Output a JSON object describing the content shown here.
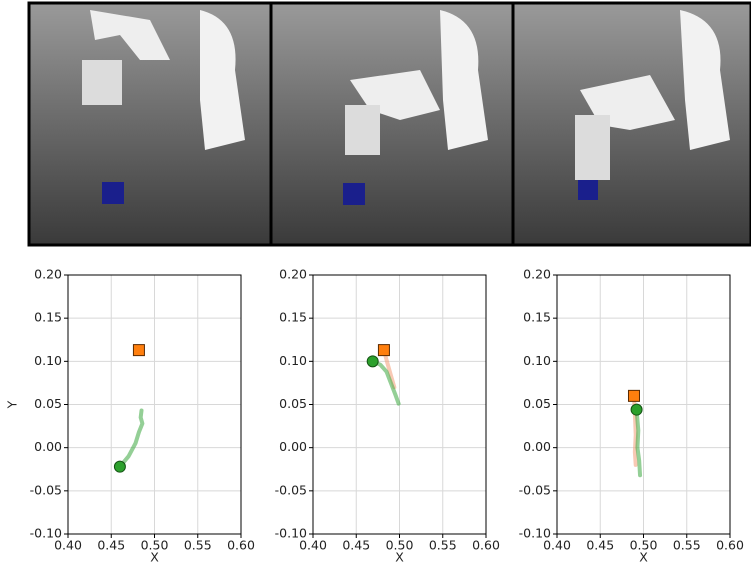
{
  "chart_data": [
    {
      "type": "line",
      "xlabel": "X",
      "ylabel": "Y",
      "xlim": [
        0.4,
        0.6
      ],
      "ylim": [
        -0.1,
        0.2
      ],
      "grid": true,
      "xticks": [
        {
          "value": 0.4,
          "label": "0.40"
        },
        {
          "value": 0.45,
          "label": "0.45"
        },
        {
          "value": 0.5,
          "label": "0.50"
        },
        {
          "value": 0.55,
          "label": "0.55"
        },
        {
          "value": 0.6,
          "label": "0.60"
        }
      ],
      "yticks": [
        {
          "value": -0.1,
          "label": "-0.10"
        },
        {
          "value": -0.05,
          "label": "-0.05"
        },
        {
          "value": 0,
          "label": "0.00"
        },
        {
          "value": 0.05,
          "label": "0.05"
        },
        {
          "value": 0.1,
          "label": "0.10"
        },
        {
          "value": 0.15,
          "label": "0.15"
        },
        {
          "value": 0.2,
          "label": "0.20"
        }
      ],
      "series": [
        {
          "color": "#4caf50",
          "x": [
            0.46,
            0.47,
            0.478,
            0.482,
            0.486,
            0.484,
            0.485
          ],
          "values": [
            -0.022,
            -0.01,
            0.005,
            0.018,
            0.028,
            0.035,
            0.043
          ]
        }
      ],
      "points": [
        {
          "marker": "circle",
          "color": "#2ca02c",
          "x": 0.46,
          "y": -0.022
        },
        {
          "marker": "square",
          "color": "#ff7f0e",
          "x": 0.482,
          "y": 0.113
        }
      ]
    },
    {
      "type": "line",
      "xlabel": "X",
      "xlim": [
        0.4,
        0.6
      ],
      "ylim": [
        -0.1,
        0.2
      ],
      "grid": true,
      "xticks": [
        {
          "value": 0.4,
          "label": "0.40"
        },
        {
          "value": 0.45,
          "label": "0.45"
        },
        {
          "value": 0.5,
          "label": "0.50"
        },
        {
          "value": 0.55,
          "label": "0.55"
        },
        {
          "value": 0.6,
          "label": "0.60"
        }
      ],
      "yticks": [
        {
          "value": -0.1,
          "label": "-0.10"
        },
        {
          "value": -0.05,
          "label": "-0.05"
        },
        {
          "value": 0,
          "label": "0.00"
        },
        {
          "value": 0.05,
          "label": "0.05"
        },
        {
          "value": 0.1,
          "label": "0.10"
        },
        {
          "value": 0.15,
          "label": "0.15"
        },
        {
          "value": 0.2,
          "label": "0.20"
        }
      ],
      "series": [
        {
          "color": "#f4a582",
          "x": [
            0.482,
            0.486,
            0.49,
            0.494
          ],
          "values": [
            0.113,
            0.098,
            0.084,
            0.07
          ]
        },
        {
          "color": "#4caf50",
          "x": [
            0.469,
            0.478,
            0.485,
            0.49,
            0.495,
            0.499
          ],
          "values": [
            0.1,
            0.096,
            0.088,
            0.075,
            0.062,
            0.051
          ]
        }
      ],
      "points": [
        {
          "marker": "circle",
          "color": "#2ca02c",
          "x": 0.469,
          "y": 0.1
        },
        {
          "marker": "square",
          "color": "#ff7f0e",
          "x": 0.482,
          "y": 0.113
        }
      ]
    },
    {
      "type": "line",
      "xlabel": "X",
      "xlim": [
        0.4,
        0.6
      ],
      "ylim": [
        -0.1,
        0.2
      ],
      "grid": true,
      "xticks": [
        {
          "value": 0.4,
          "label": "0.40"
        },
        {
          "value": 0.45,
          "label": "0.45"
        },
        {
          "value": 0.5,
          "label": "0.50"
        },
        {
          "value": 0.55,
          "label": "0.55"
        },
        {
          "value": 0.6,
          "label": "0.60"
        }
      ],
      "yticks": [
        {
          "value": -0.1,
          "label": "-0.10"
        },
        {
          "value": -0.05,
          "label": "-0.05"
        },
        {
          "value": 0,
          "label": "0.00"
        },
        {
          "value": 0.05,
          "label": "0.05"
        },
        {
          "value": 0.1,
          "label": "0.10"
        },
        {
          "value": 0.15,
          "label": "0.15"
        },
        {
          "value": 0.2,
          "label": "0.20"
        }
      ],
      "series": [
        {
          "color": "#f4a582",
          "x": [
            0.489,
            0.49,
            0.491,
            0.49,
            0.491
          ],
          "values": [
            0.06,
            0.04,
            0.015,
            -0.005,
            -0.02
          ]
        },
        {
          "color": "#4caf50",
          "x": [
            0.492,
            0.494,
            0.493,
            0.495,
            0.496
          ],
          "values": [
            0.044,
            0.02,
            0.0,
            -0.015,
            -0.032
          ]
        }
      ],
      "points": [
        {
          "marker": "circle",
          "color": "#2ca02c",
          "x": 0.492,
          "y": 0.044
        },
        {
          "marker": "square",
          "color": "#ff7f0e",
          "x": 0.489,
          "y": 0.06
        }
      ]
    }
  ]
}
